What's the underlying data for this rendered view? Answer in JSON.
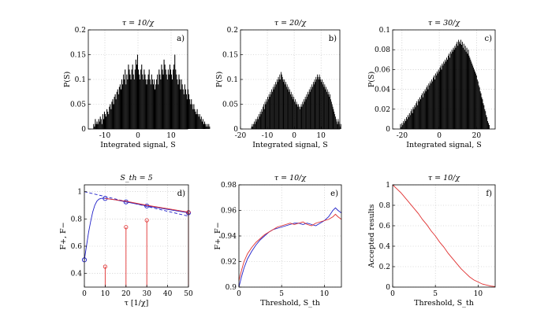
{
  "chart_data": [
    {
      "id": "a",
      "type": "bar",
      "panel_label": "a)",
      "title": "τ = 10/χ",
      "xlabel": "Integrated signal, S",
      "ylabel": "P(S)",
      "xlim": [
        -15,
        15
      ],
      "ylim": [
        0,
        0.2
      ],
      "xticks": [
        -10,
        0,
        10
      ],
      "yticks": [
        0,
        0.05,
        0.1,
        0.15,
        0.2
      ],
      "ytick_labels": [
        "0",
        "0.05",
        "0.1",
        "0.15",
        "0.2"
      ],
      "grid": true,
      "bin_start": -13.5,
      "bin_width": 0.25,
      "values": [
        0.01,
        0.005,
        0.02,
        0.01,
        0.015,
        0.01,
        0.02,
        0.015,
        0.025,
        0.02,
        0.01,
        0.03,
        0.02,
        0.035,
        0.03,
        0.025,
        0.04,
        0.035,
        0.03,
        0.045,
        0.05,
        0.04,
        0.055,
        0.06,
        0.05,
        0.065,
        0.07,
        0.06,
        0.075,
        0.08,
        0.07,
        0.085,
        0.09,
        0.08,
        0.1,
        0.09,
        0.11,
        0.1,
        0.12,
        0.09,
        0.11,
        0.1,
        0.13,
        0.12,
        0.11,
        0.1,
        0.12,
        0.13,
        0.11,
        0.1,
        0.12,
        0.14,
        0.13,
        0.15,
        0.12,
        0.11,
        0.1,
        0.12,
        0.13,
        0.11,
        0.1,
        0.12,
        0.11,
        0.1,
        0.09,
        0.1,
        0.11,
        0.12,
        0.1,
        0.09,
        0.11,
        0.1,
        0.09,
        0.1,
        0.08,
        0.09,
        0.1,
        0.11,
        0.09,
        0.12,
        0.11,
        0.1,
        0.13,
        0.12,
        0.11,
        0.14,
        0.13,
        0.12,
        0.11,
        0.1,
        0.12,
        0.11,
        0.13,
        0.12,
        0.11,
        0.1,
        0.12,
        0.13,
        0.15,
        0.12,
        0.11,
        0.1,
        0.09,
        0.11,
        0.1,
        0.08,
        0.1,
        0.09,
        0.08,
        0.07,
        0.09,
        0.08,
        0.07,
        0.06,
        0.08,
        0.07,
        0.06,
        0.05,
        0.06,
        0.05,
        0.04,
        0.05,
        0.04,
        0.035,
        0.03,
        0.04,
        0.03,
        0.025,
        0.03,
        0.02,
        0.025,
        0.015,
        0.02,
        0.01,
        0.015,
        0.01,
        0.005,
        0.01,
        0.005,
        0.01,
        0.005
      ]
    },
    {
      "id": "b",
      "type": "bar",
      "panel_label": "b)",
      "title": "τ = 20/χ",
      "xlabel": "Integrated signal, S",
      "ylabel": "P(S)",
      "xlim": [
        -20,
        17
      ],
      "ylim": [
        0,
        0.2
      ],
      "xticks": [
        -20,
        -10,
        0,
        10
      ],
      "yticks": [
        0,
        0.05,
        0.1,
        0.15,
        0.2
      ],
      "ytick_labels": [
        "0",
        "0.05",
        "0.1",
        "0.15",
        "0.2"
      ],
      "grid": true,
      "bin_start": -16,
      "bin_width": 0.25,
      "values": [
        0.005,
        0.01,
        0.005,
        0.01,
        0.015,
        0.01,
        0.02,
        0.015,
        0.02,
        0.025,
        0.02,
        0.03,
        0.025,
        0.035,
        0.03,
        0.04,
        0.035,
        0.045,
        0.05,
        0.04,
        0.055,
        0.05,
        0.06,
        0.055,
        0.065,
        0.06,
        0.07,
        0.065,
        0.075,
        0.07,
        0.08,
        0.075,
        0.085,
        0.08,
        0.09,
        0.085,
        0.095,
        0.09,
        0.1,
        0.095,
        0.105,
        0.1,
        0.11,
        0.1,
        0.115,
        0.11,
        0.105,
        0.1,
        0.095,
        0.1,
        0.09,
        0.095,
        0.085,
        0.09,
        0.08,
        0.085,
        0.075,
        0.08,
        0.07,
        0.075,
        0.065,
        0.07,
        0.06,
        0.065,
        0.055,
        0.06,
        0.05,
        0.055,
        0.05,
        0.045,
        0.05,
        0.045,
        0.04,
        0.045,
        0.05,
        0.045,
        0.055,
        0.05,
        0.06,
        0.055,
        0.065,
        0.06,
        0.07,
        0.065,
        0.075,
        0.07,
        0.08,
        0.075,
        0.085,
        0.08,
        0.09,
        0.085,
        0.095,
        0.09,
        0.1,
        0.095,
        0.105,
        0.1,
        0.11,
        0.105,
        0.1,
        0.11,
        0.105,
        0.1,
        0.095,
        0.1,
        0.09,
        0.095,
        0.085,
        0.09,
        0.08,
        0.085,
        0.075,
        0.08,
        0.07,
        0.075,
        0.065,
        0.07,
        0.06,
        0.055,
        0.05,
        0.045,
        0.04,
        0.035,
        0.03,
        0.025,
        0.02,
        0.015,
        0.01,
        0.02,
        0.015,
        0.01,
        0.005,
        0.01
      ]
    },
    {
      "id": "c",
      "type": "bar",
      "panel_label": "c)",
      "title": "τ = 30/χ",
      "xlabel": "Integrated signal, S",
      "ylabel": "P(S)",
      "xlim": [
        -25,
        30
      ],
      "ylim": [
        0,
        0.1
      ],
      "xticks": [
        -20,
        0,
        20
      ],
      "yticks": [
        0,
        0.02,
        0.04,
        0.06,
        0.08,
        0.1
      ],
      "ytick_labels": [
        "0",
        "0.02",
        "0.04",
        "0.06",
        "0.08",
        "0.1"
      ],
      "grid": true,
      "bin_start": -21,
      "bin_width": 0.4,
      "values": [
        0.005,
        0.002,
        0.006,
        0.004,
        0.008,
        0.006,
        0.01,
        0.008,
        0.012,
        0.01,
        0.014,
        0.012,
        0.016,
        0.014,
        0.018,
        0.02,
        0.016,
        0.022,
        0.02,
        0.024,
        0.022,
        0.026,
        0.028,
        0.024,
        0.03,
        0.028,
        0.032,
        0.03,
        0.034,
        0.036,
        0.032,
        0.038,
        0.036,
        0.04,
        0.038,
        0.042,
        0.044,
        0.04,
        0.046,
        0.044,
        0.048,
        0.046,
        0.05,
        0.048,
        0.052,
        0.054,
        0.05,
        0.056,
        0.054,
        0.058,
        0.056,
        0.06,
        0.058,
        0.062,
        0.064,
        0.06,
        0.066,
        0.064,
        0.068,
        0.066,
        0.07,
        0.068,
        0.072,
        0.07,
        0.074,
        0.076,
        0.072,
        0.078,
        0.076,
        0.08,
        0.078,
        0.082,
        0.08,
        0.084,
        0.082,
        0.086,
        0.088,
        0.084,
        0.09,
        0.088,
        0.086,
        0.09,
        0.085,
        0.088,
        0.082,
        0.086,
        0.08,
        0.084,
        0.078,
        0.082,
        0.076,
        0.08,
        0.074,
        0.072,
        0.07,
        0.068,
        0.066,
        0.064,
        0.062,
        0.06,
        0.058,
        0.056,
        0.054,
        0.05,
        0.048,
        0.044,
        0.042,
        0.038,
        0.036,
        0.032,
        0.03,
        0.026,
        0.024,
        0.02,
        0.018,
        0.014,
        0.012,
        0.008,
        0.006,
        0.004
      ]
    },
    {
      "id": "d",
      "type": "line",
      "panel_label": "d)",
      "title": "S_th = 5",
      "xlabel": "τ [1/χ]",
      "ylabel": "F+, F−",
      "xlim": [
        0,
        50
      ],
      "ylim": [
        0.3,
        1.05
      ],
      "xticks": [
        0,
        10,
        20,
        30,
        40,
        50
      ],
      "yticks": [
        0.4,
        0.6,
        0.8,
        1
      ],
      "ytick_labels": [
        "0.4",
        "0.6",
        "0.8",
        "1"
      ],
      "grid": true,
      "series": [
        {
          "role": "solid-line",
          "color": "#2020c8",
          "x": [
            0,
            1,
            2,
            3,
            4,
            5,
            6,
            7,
            8,
            9,
            10,
            15,
            20,
            30,
            40,
            50
          ],
          "y": [
            0.5,
            0.6,
            0.7,
            0.78,
            0.85,
            0.9,
            0.93,
            0.945,
            0.95,
            0.952,
            0.95,
            0.94,
            0.925,
            0.895,
            0.87,
            0.845
          ]
        },
        {
          "role": "dashed-line",
          "color": "#2020c8",
          "x": [
            0,
            50
          ],
          "y": [
            1.0,
            0.82
          ]
        },
        {
          "role": "circle-markers",
          "color": "#2020c8",
          "x": [
            0,
            10,
            20,
            30,
            50
          ],
          "y": [
            0.5,
            0.95,
            0.925,
            0.895,
            0.845
          ]
        },
        {
          "role": "red-line",
          "color": "#e03030",
          "x": [
            10,
            20,
            30,
            40,
            50
          ],
          "y": [
            0.95,
            0.93,
            0.9,
            0.875,
            0.85
          ]
        },
        {
          "role": "stems",
          "color": "#e03030",
          "x": [
            10,
            20,
            30,
            50
          ],
          "y": [
            0.45,
            0.74,
            0.79,
            0.85
          ]
        }
      ]
    },
    {
      "id": "e",
      "type": "line",
      "panel_label": "e)",
      "title": "τ = 10/χ",
      "xlabel": "Threshold, S_th",
      "ylabel": "F+, F−",
      "xlim": [
        0,
        12
      ],
      "ylim": [
        0.9,
        0.98
      ],
      "xticks": [
        0,
        5,
        10
      ],
      "yticks": [
        0.9,
        0.92,
        0.94,
        0.96,
        0.98
      ],
      "ytick_labels": [
        "0.9",
        "0.92",
        "0.94",
        "0.96",
        "0.98"
      ],
      "grid": true,
      "series": [
        {
          "color": "#2020c8",
          "x": [
            0,
            0.3,
            0.6,
            1,
            1.5,
            2,
            2.5,
            3,
            3.5,
            4,
            4.5,
            5,
            5.5,
            6,
            6.5,
            7,
            7.5,
            8,
            8.5,
            9,
            9.5,
            10,
            10.5,
            11,
            11.3,
            11.6,
            12
          ],
          "y": [
            0.9,
            0.908,
            0.915,
            0.922,
            0.928,
            0.933,
            0.937,
            0.94,
            0.943,
            0.945,
            0.946,
            0.947,
            0.948,
            0.949,
            0.95,
            0.95,
            0.949,
            0.95,
            0.949,
            0.948,
            0.95,
            0.952,
            0.955,
            0.96,
            0.962,
            0.96,
            0.958
          ]
        },
        {
          "color": "#e03030",
          "x": [
            0,
            0.3,
            0.6,
            1,
            1.5,
            2,
            2.5,
            3,
            3.5,
            4,
            4.5,
            5,
            5.5,
            6,
            6.5,
            7,
            7.5,
            8,
            8.5,
            9,
            9.5,
            10,
            10.5,
            11,
            11.3,
            11.6,
            12
          ],
          "y": [
            0.905,
            0.913,
            0.92,
            0.926,
            0.931,
            0.935,
            0.938,
            0.941,
            0.943,
            0.945,
            0.947,
            0.948,
            0.949,
            0.95,
            0.949,
            0.95,
            0.951,
            0.949,
            0.948,
            0.95,
            0.951,
            0.952,
            0.953,
            0.955,
            0.957,
            0.955,
            0.953
          ]
        }
      ]
    },
    {
      "id": "f",
      "type": "line",
      "panel_label": "f)",
      "title": "τ = 10/χ",
      "xlabel": "Threshold, S_th",
      "ylabel": "Accepted results",
      "xlim": [
        0,
        12
      ],
      "ylim": [
        0,
        1
      ],
      "xticks": [
        0,
        5,
        10
      ],
      "yticks": [
        0,
        0.2,
        0.4,
        0.6,
        0.8,
        1
      ],
      "ytick_labels": [
        "0",
        "0.2",
        "0.4",
        "0.6",
        "0.8",
        "1"
      ],
      "grid": true,
      "series": [
        {
          "color": "#e03030",
          "x": [
            0,
            0.5,
            1,
            1.5,
            2,
            2.5,
            3,
            3.5,
            4,
            4.5,
            5,
            5.5,
            6,
            6.5,
            7,
            7.5,
            8,
            8.5,
            9,
            9.5,
            10,
            10.5,
            11,
            11.5,
            12
          ],
          "y": [
            1.0,
            0.96,
            0.92,
            0.87,
            0.82,
            0.77,
            0.72,
            0.66,
            0.61,
            0.55,
            0.5,
            0.44,
            0.39,
            0.33,
            0.28,
            0.23,
            0.18,
            0.14,
            0.1,
            0.07,
            0.05,
            0.03,
            0.02,
            0.01,
            0.005
          ]
        }
      ]
    }
  ]
}
